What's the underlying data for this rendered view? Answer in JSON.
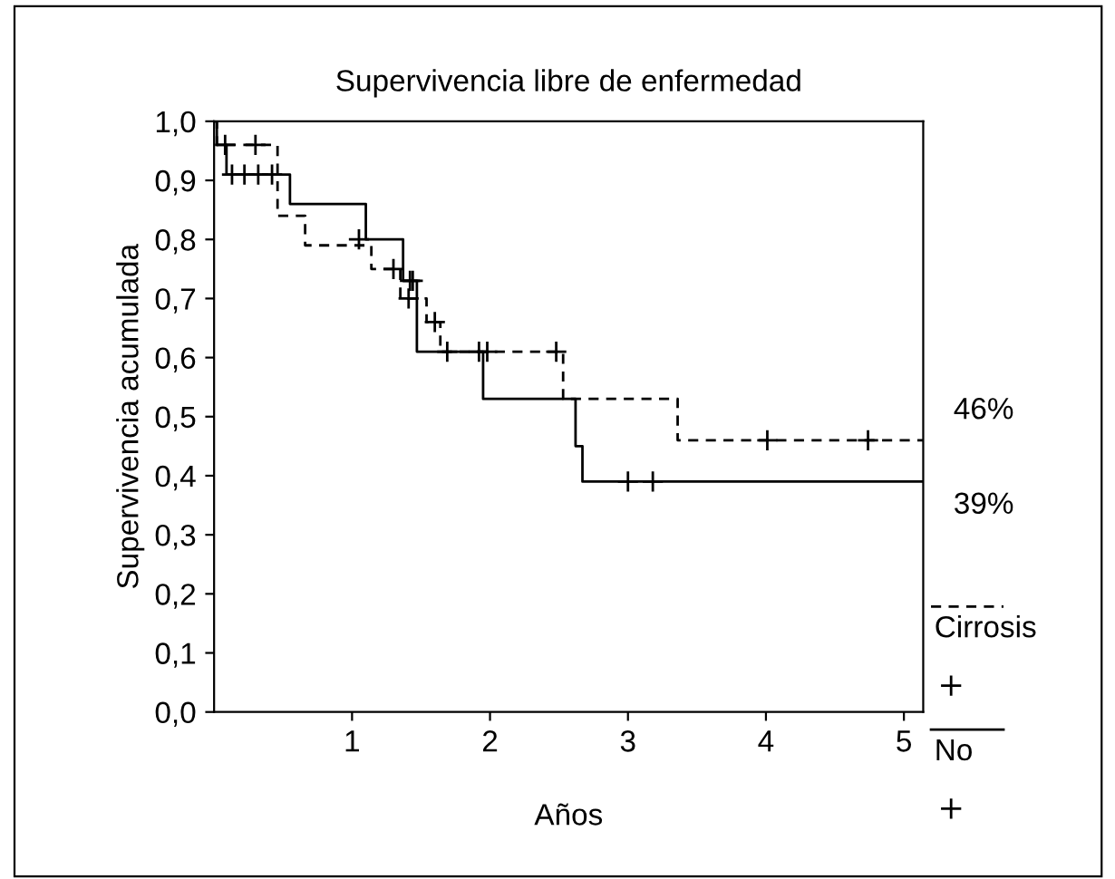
{
  "chart_data": {
    "type": "step",
    "title": "Supervivencia libre de enfermedad",
    "xlabel": "Años",
    "ylabel": "Supervivencia acumulada",
    "xlim": [
      0,
      5.14
    ],
    "xticks": [
      1,
      2,
      3,
      4,
      5
    ],
    "ylim": [
      0,
      1
    ],
    "yticks": [
      {
        "value": 0,
        "label": "0,0"
      },
      {
        "value": 0.1,
        "label": "0,1"
      },
      {
        "value": 0.2,
        "label": "0,2"
      },
      {
        "value": 0.3,
        "label": "0,3"
      },
      {
        "value": 0.4,
        "label": "0,4"
      },
      {
        "value": 0.5,
        "label": "0,5"
      },
      {
        "value": 0.6,
        "label": "0,6"
      },
      {
        "value": 0.7,
        "label": "0,7"
      },
      {
        "value": 0.8,
        "label": "0,8"
      },
      {
        "value": 0.9,
        "label": "0,9"
      },
      {
        "value": 1.0,
        "label": "1,0"
      }
    ],
    "grid": false,
    "legend": "right",
    "series": [
      {
        "name": "Cirrosis",
        "color": "#000000",
        "line_style": "dashed",
        "x": [
          0,
          0.02,
          0.46,
          0.66,
          1.14,
          1.35,
          1.54,
          1.64,
          2.53,
          3.36,
          5.14
        ],
        "values": [
          1.0,
          0.96,
          0.84,
          0.79,
          0.75,
          0.7,
          0.66,
          0.61,
          0.53,
          0.46,
          0.46
        ]
      },
      {
        "type": "scatter",
        "marker": "cross",
        "color": "#000000",
        "x": [
          0.08,
          0.3,
          1.3,
          1.41,
          1.6,
          1.92,
          2.48,
          4.01,
          4.74
        ],
        "values": [
          0.96,
          0.96,
          0.75,
          0.7,
          0.66,
          0.61,
          0.61,
          0.46,
          0.46
        ]
      },
      {
        "name": "No",
        "color": "#000000",
        "line_style": "solid",
        "x": [
          0,
          0.02,
          0.09,
          0.55,
          1.1,
          1.37,
          1.47,
          1.95,
          2.62,
          2.67,
          5.14
        ],
        "values": [
          1.0,
          0.96,
          0.91,
          0.86,
          0.8,
          0.73,
          0.61,
          0.53,
          0.45,
          0.39,
          0.39
        ]
      },
      {
        "type": "scatter",
        "marker": "cross",
        "color": "#000000",
        "x": [
          0.13,
          0.22,
          0.32,
          0.42,
          1.05,
          1.42,
          1.44,
          1.69,
          1.98,
          3.0,
          3.18
        ],
        "values": [
          0.91,
          0.91,
          0.91,
          0.91,
          0.8,
          0.73,
          0.73,
          0.61,
          0.61,
          0.39,
          0.39
        ]
      }
    ],
    "annotations": [
      {
        "text": "46%",
        "x": 5.14,
        "y": 0.46
      },
      {
        "text": "39%",
        "x": 5.14,
        "y": 0.39
      }
    ]
  }
}
